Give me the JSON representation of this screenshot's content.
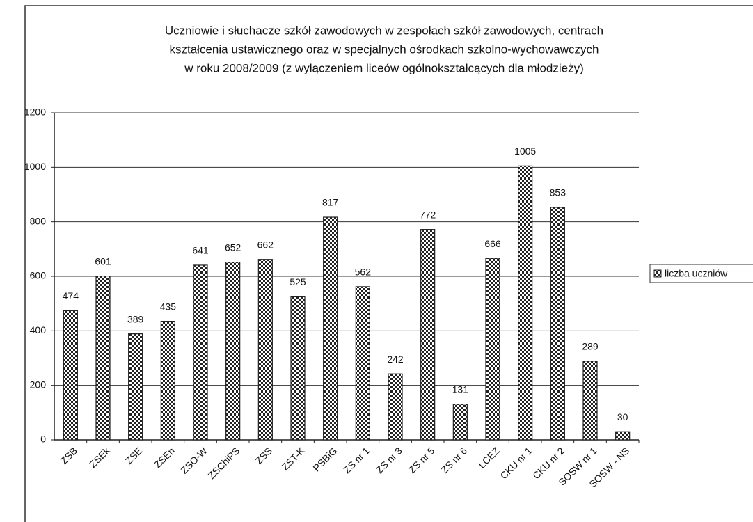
{
  "chart_data": {
    "type": "bar",
    "title": [
      "Uczniowie i słuchacze szkół zawodowych w zespołach szkół zawodowych, centrach",
      "kształcenia ustawicznego oraz w specjalnych ośrodkach szkolno-wychowawczych",
      "w roku 2008/2009 (z wyłączeniem liceów ogólnokształcących dla młodzieży)"
    ],
    "categories": [
      "ZSB",
      "ZSEk",
      "ZSE",
      "ZSEn",
      "ZSO-W",
      "ZSChiPS",
      "ZSS",
      "ZST-K",
      "PSBiG",
      "ZS nr 1",
      "ZS nr 3",
      "ZS nr 5",
      "ZS nr 6",
      "LCEZ",
      "CKU nr 1",
      "CKU nr 2",
      "SOSW nr 1",
      "SOSW - NS"
    ],
    "series": [
      {
        "name": "liczba uczniów",
        "color": "#222222",
        "values": [
          474,
          601,
          389,
          435,
          641,
          652,
          662,
          525,
          817,
          562,
          242,
          772,
          131,
          666,
          1005,
          853,
          289,
          30
        ]
      }
    ],
    "ylim": [
      0,
      1200
    ],
    "yticks": [
      0,
      200,
      400,
      600,
      800,
      1000,
      1200
    ],
    "grid": true,
    "legend": "right"
  }
}
